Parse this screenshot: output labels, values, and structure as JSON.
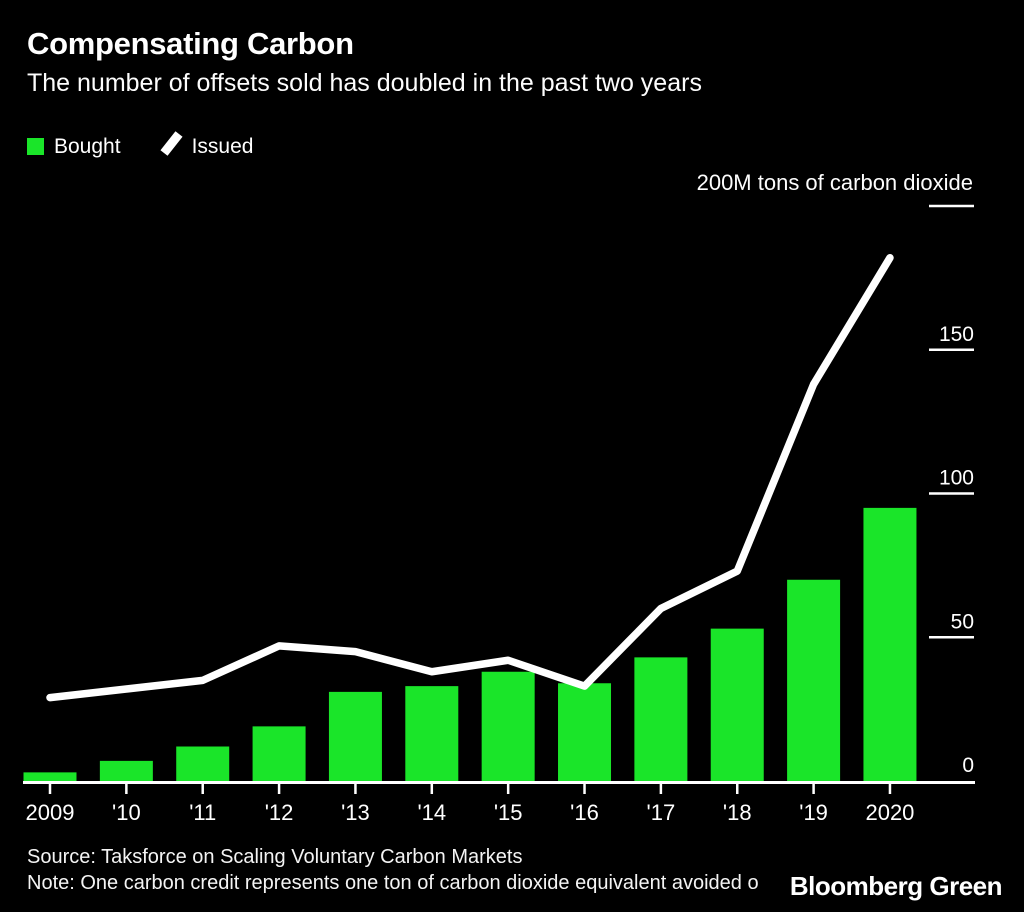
{
  "header": {
    "title": "Compensating Carbon",
    "subtitle": "The number of offsets sold has doubled in the past two years"
  },
  "legend": {
    "bought": {
      "label": "Bought",
      "swatch": "green-square"
    },
    "issued": {
      "label": "Issued",
      "swatch": "white-diagonal-line"
    }
  },
  "footer": {
    "source": "Source: Taksforce on Scaling Voluntary Carbon Markets",
    "note": "Note: One carbon credit represents one ton of carbon dioxide equivalent avoided o",
    "brand": "Bloomberg Green"
  },
  "chart_data": {
    "type": "bar",
    "title": "Compensating Carbon",
    "subtitle": "The number of offsets sold has doubled in the past two years",
    "categories": [
      "2009",
      "'10",
      "'11",
      "'12",
      "'13",
      "'14",
      "'15",
      "'16",
      "'17",
      "'18",
      "'19",
      "2020"
    ],
    "series": [
      {
        "name": "Bought",
        "type": "bar",
        "values": [
          3,
          7,
          12,
          19,
          31,
          33,
          38,
          34,
          43,
          53,
          70,
          95
        ]
      },
      {
        "name": "Issued",
        "type": "line",
        "values": [
          29,
          32,
          35,
          47,
          45,
          38,
          42,
          33,
          60,
          73,
          138,
          182
        ]
      }
    ],
    "unit_label": "200M tons of carbon dioxide",
    "ylabel": "M tons of carbon dioxide",
    "xlabel": "",
    "ylim": [
      0,
      200
    ],
    "y_ticks": [
      0,
      50,
      100,
      150,
      200
    ],
    "grid": false,
    "legend_position": "top-left",
    "axis_side": "right",
    "colors": {
      "bar": "#1AE529",
      "line": "#FFFFFF",
      "background": "#000000",
      "text": "#FFFFFF"
    }
  }
}
